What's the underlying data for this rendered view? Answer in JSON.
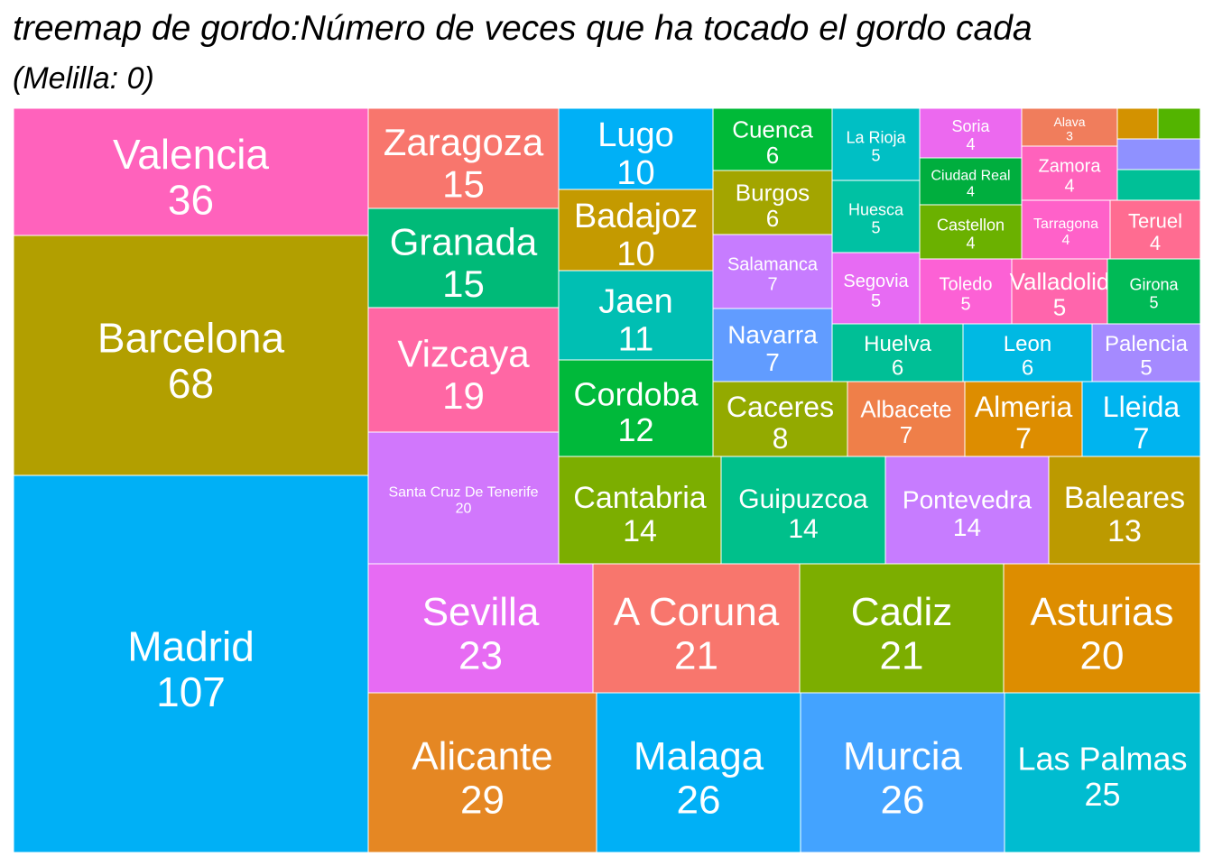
{
  "title": "treemap de gordo:Número de veces que ha tocado el gordo cada",
  "subtitle": "(Melilla: 0)",
  "chart_data": {
    "type": "treemap",
    "title": "treemap de gordo:Número de veces que ha tocado el gordo cada",
    "subtitle": "(Melilla: 0)",
    "items": [
      {
        "label": "Madrid",
        "value": 107,
        "color": "#00b0f6"
      },
      {
        "label": "Barcelona",
        "value": 68,
        "color": "#b29f00"
      },
      {
        "label": "Valencia",
        "value": 36,
        "color": "#ff62bc"
      },
      {
        "label": "Alicante",
        "value": 29,
        "color": "#e58723"
      },
      {
        "label": "Malaga",
        "value": 26,
        "color": "#00b0f6"
      },
      {
        "label": "Murcia",
        "value": 26,
        "color": "#43a3ff"
      },
      {
        "label": "Las Palmas",
        "value": 25,
        "color": "#00bcd0"
      },
      {
        "label": "Sevilla",
        "value": 23,
        "color": "#e76bf3"
      },
      {
        "label": "A Coruna",
        "value": 21,
        "color": "#f8766d"
      },
      {
        "label": "Cadiz",
        "value": 21,
        "color": "#7cae00"
      },
      {
        "label": "Asturias",
        "value": 20,
        "color": "#dd8d00"
      },
      {
        "label": "Santa Cruz De Tenerife",
        "value": 20,
        "color": "#d177fc"
      },
      {
        "label": "Vizcaya",
        "value": 19,
        "color": "#ff67a4"
      },
      {
        "label": "Zaragoza",
        "value": 15,
        "color": "#f8766d"
      },
      {
        "label": "Granada",
        "value": 15,
        "color": "#00ba78"
      },
      {
        "label": "Cantabria",
        "value": 14,
        "color": "#7cae00"
      },
      {
        "label": "Guipuzcoa",
        "value": 14,
        "color": "#00c08b"
      },
      {
        "label": "Pontevedra",
        "value": 14,
        "color": "#c77cff"
      },
      {
        "label": "Baleares",
        "value": 13,
        "color": "#bc9a00"
      },
      {
        "label": "Cordoba",
        "value": 12,
        "color": "#00b93a"
      },
      {
        "label": "Jaen",
        "value": 11,
        "color": "#00bfb3"
      },
      {
        "label": "Lugo",
        "value": 10,
        "color": "#00b0f6"
      },
      {
        "label": "Badajoz",
        "value": 10,
        "color": "#c49a00"
      },
      {
        "label": "Caceres",
        "value": 8,
        "color": "#93aa00"
      },
      {
        "label": "Salamanca",
        "value": 7,
        "color": "#c77cff"
      },
      {
        "label": "Navarra",
        "value": 7,
        "color": "#619cff"
      },
      {
        "label": "Albacete",
        "value": 7,
        "color": "#ef7f49"
      },
      {
        "label": "Almeria",
        "value": 7,
        "color": "#dd8d00"
      },
      {
        "label": "Lleida",
        "value": 7,
        "color": "#00b4ef"
      },
      {
        "label": "Cuenca",
        "value": 6,
        "color": "#00ba38"
      },
      {
        "label": "Burgos",
        "value": 6,
        "color": "#a3a500"
      },
      {
        "label": "Huelva",
        "value": 6,
        "color": "#00bf96"
      },
      {
        "label": "Leon",
        "value": 6,
        "color": "#00b9e3"
      },
      {
        "label": "Palencia",
        "value": 5,
        "color": "#a58aff"
      },
      {
        "label": "La Rioja",
        "value": 5,
        "color": "#00bfc4"
      },
      {
        "label": "Huesca",
        "value": 5,
        "color": "#00c1a3"
      },
      {
        "label": "Segovia",
        "value": 5,
        "color": "#e76bf3"
      },
      {
        "label": "Toledo",
        "value": 5,
        "color": "#fc61d5"
      },
      {
        "label": "Valladolid",
        "value": 5,
        "color": "#ff65ac"
      },
      {
        "label": "Girona",
        "value": 5,
        "color": "#00ba56"
      },
      {
        "label": "Soria",
        "value": 4,
        "color": "#ec69ef"
      },
      {
        "label": "Ciudad Real",
        "value": 4,
        "color": "#00ae3e"
      },
      {
        "label": "Castellon",
        "value": 4,
        "color": "#6bb100"
      },
      {
        "label": "Zamora",
        "value": 4,
        "color": "#ff62bc"
      },
      {
        "label": "Tarragona",
        "value": 4,
        "color": "#ff61c9"
      },
      {
        "label": "Teruel",
        "value": 4,
        "color": "#ff6c91"
      },
      {
        "label": "Alava",
        "value": 3,
        "color": "#f07d5c"
      },
      {
        "label": "",
        "value": null,
        "color": "#d39200"
      },
      {
        "label": "",
        "value": null,
        "color": "#53b400"
      },
      {
        "label": "",
        "value": null,
        "color": "#8f91ff"
      },
      {
        "label": "",
        "value": null,
        "color": "#00c097"
      }
    ]
  }
}
